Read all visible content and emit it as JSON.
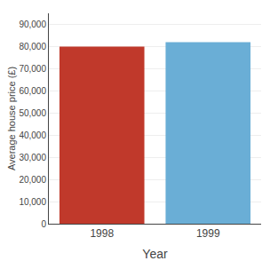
{
  "chart_data": {
    "type": "bar",
    "categories": [
      "1998",
      "1999"
    ],
    "values": [
      80000,
      82000
    ],
    "colors": [
      "#c0392b",
      "#6aaed6"
    ],
    "xlabel": "Year",
    "ylabel": "Average house price (£)",
    "ylim": [
      0,
      95000
    ],
    "yticks": [
      0,
      {
        "value": 10000,
        "label": "10,000"
      },
      {
        "value": 20000,
        "label": "20,000"
      },
      {
        "value": 30000,
        "label": "30,000"
      },
      {
        "value": 40000,
        "label": "40,000"
      },
      {
        "value": 50000,
        "label": "50,000"
      },
      {
        "value": 60000,
        "label": "60,000"
      },
      {
        "value": 70000,
        "label": "70,000"
      },
      {
        "value": 80000,
        "label": "80,000"
      },
      {
        "value": 90000,
        "label": "90,000"
      }
    ],
    "grid": true
  }
}
